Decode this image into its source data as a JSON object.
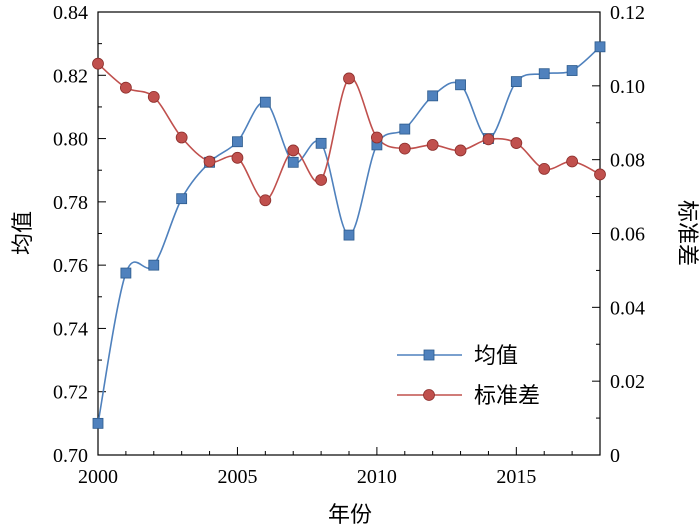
{
  "chart_data": {
    "type": "line",
    "xlabel": "年份",
    "ylabel_left": "均值",
    "ylabel_right": "标准差",
    "xlim": [
      2000,
      2018
    ],
    "ylim_left": [
      0.7,
      0.84
    ],
    "ylim_right": [
      0,
      0.12
    ],
    "x_ticks": [
      "2000",
      "2005",
      "2010",
      "2015"
    ],
    "y_ticks_left": [
      "0.70",
      "0.72",
      "0.74",
      "0.76",
      "0.78",
      "0.80",
      "0.82",
      "0.84"
    ],
    "y_ticks_right": [
      "0",
      "0.02",
      "0.04",
      "0.06",
      "0.08",
      "0.10",
      "0.12"
    ],
    "grid": false,
    "legend_position": "lower-right",
    "x": [
      2000,
      2001,
      2002,
      2003,
      2004,
      2005,
      2006,
      2007,
      2008,
      2009,
      2010,
      2011,
      2012,
      2013,
      2014,
      2015,
      2016,
      2017,
      2018
    ],
    "series": [
      {
        "name": "均值",
        "axis": "left",
        "color": "#4f81bd",
        "marker": "square",
        "values": [
          0.71,
          0.7575,
          0.76,
          0.781,
          0.7925,
          0.799,
          0.8115,
          0.7925,
          0.7985,
          0.7695,
          0.798,
          0.803,
          0.8135,
          0.817,
          0.8,
          0.818,
          0.8205,
          0.8215,
          0.829
        ]
      },
      {
        "name": "标准差",
        "axis": "right",
        "color": "#c0504d",
        "marker": "circle",
        "values": [
          0.106,
          0.0995,
          0.097,
          0.086,
          0.0795,
          0.0805,
          0.069,
          0.0825,
          0.0745,
          0.102,
          0.086,
          0.083,
          0.084,
          0.0825,
          0.0855,
          0.0845,
          0.0775,
          0.0795,
          0.076
        ]
      }
    ]
  }
}
